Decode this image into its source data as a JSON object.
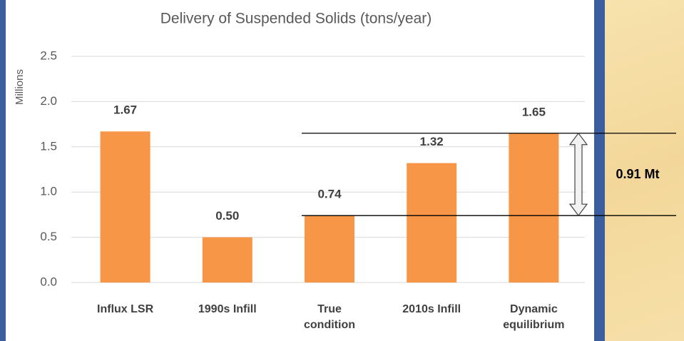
{
  "chart_data": {
    "type": "bar",
    "title": "Delivery of Suspended Solids (tons/year)",
    "y_label": "Millions",
    "categories": [
      "Influx LSR",
      "1990s Infill",
      "True condition",
      "2010s Infill",
      "Dynamic equilibrium"
    ],
    "values": [
      1.67,
      0.5,
      0.74,
      1.32,
      1.65
    ],
    "value_labels": [
      "1.67",
      "0.50",
      "0.74",
      "1.32",
      "1.65"
    ],
    "color": "#f79646",
    "ylim": [
      0,
      2.5
    ],
    "yticks": [
      {
        "value": 0,
        "label": "0.0"
      },
      0.5,
      {
        "value": 1,
        "label": "1.0"
      },
      1.5,
      {
        "value": 2,
        "label": "2.0"
      },
      2.5
    ],
    "grid": true,
    "annotation": "0.91 Mt"
  }
}
